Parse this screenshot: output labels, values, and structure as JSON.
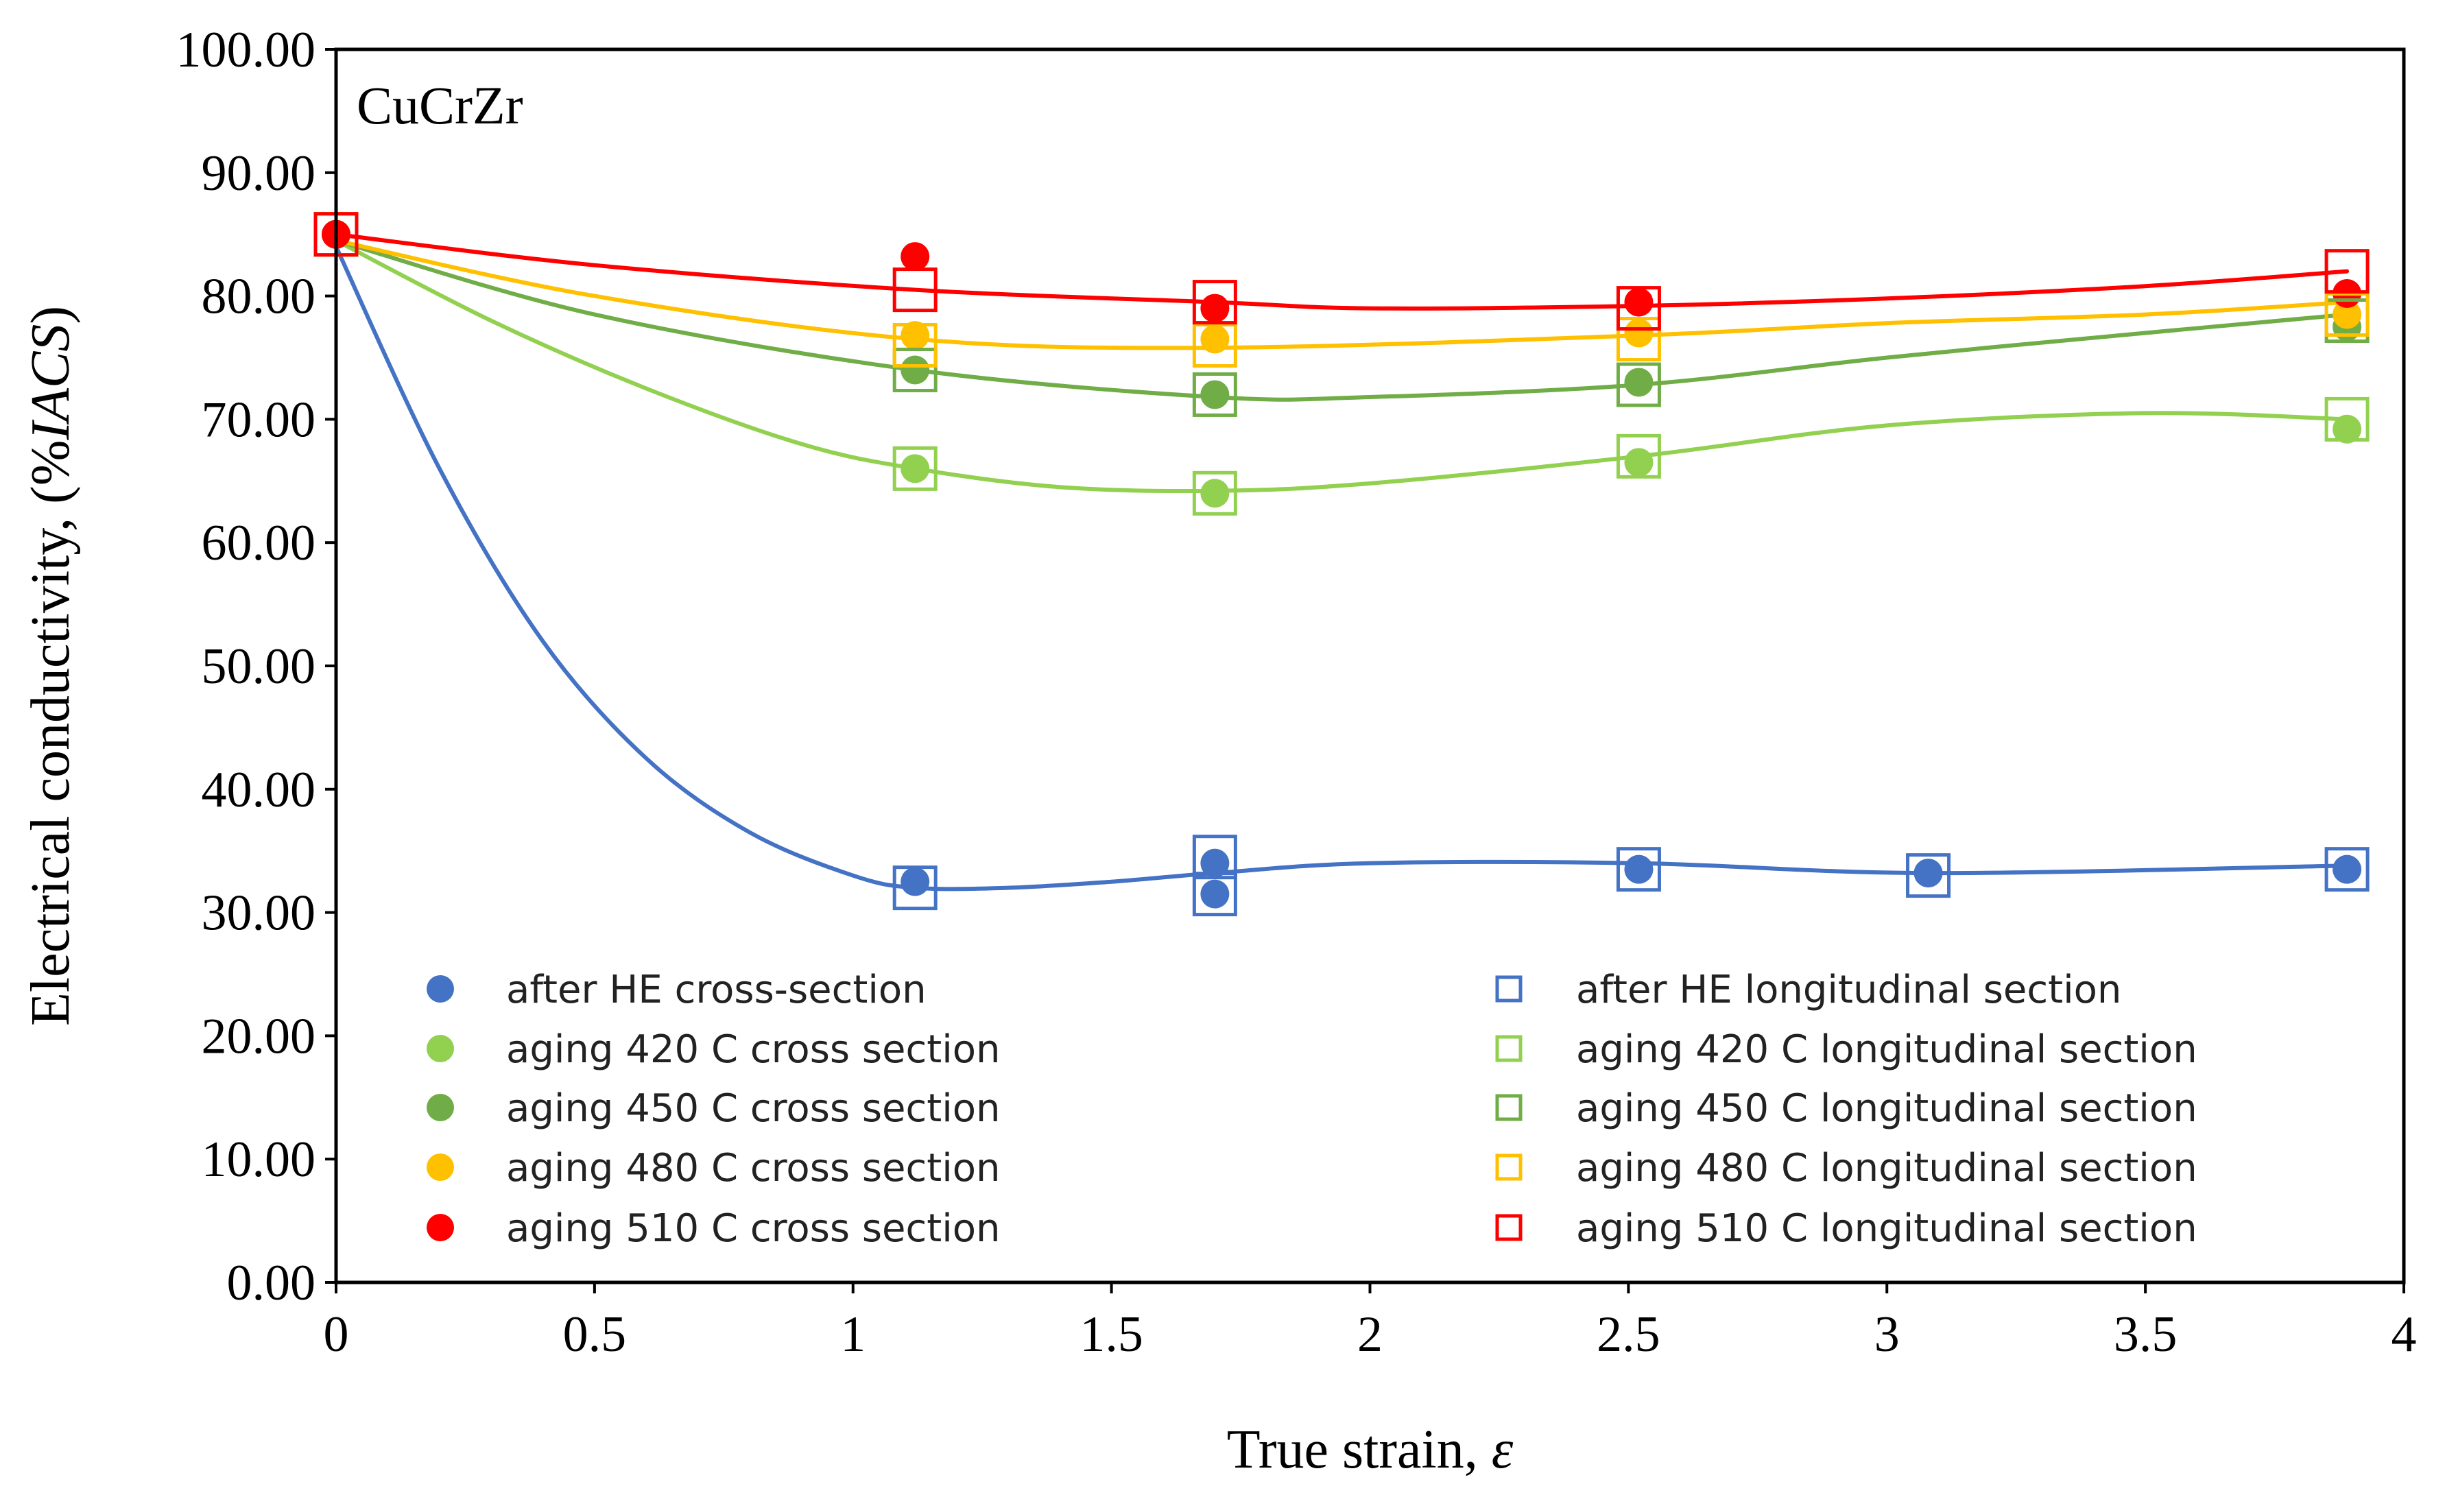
{
  "chart_data": {
    "type": "scatter",
    "annotation": "CuCrZr",
    "xlabel": "True strain, ",
    "xlabel_symbol": "ε",
    "ylabel": "Electrical conductivity, (%",
    "ylabel_italic": "IACS",
    "ylabel_suffix": ")",
    "xlim": [
      0,
      4
    ],
    "ylim": [
      0,
      100
    ],
    "x_ticks": [
      "0",
      "0.5",
      "1",
      "1.5",
      "2",
      "2.5",
      "3",
      "3.5",
      "4"
    ],
    "y_ticks": [
      "0.00",
      "10.00",
      "20.00",
      "30.00",
      "40.00",
      "50.00",
      "60.00",
      "70.00",
      "80.00",
      "90.00",
      "100.00"
    ],
    "grid": false,
    "legend_position": "bottom-inside",
    "colors": {
      "blue": "#4472c4",
      "light_green": "#92d050",
      "green": "#70ad47",
      "yellow": "#ffc000",
      "red": "#ff0000"
    },
    "series": [
      {
        "name": "after HE cross-section",
        "marker": "circle",
        "color": "#4472c4",
        "x": [
          0,
          1.12,
          1.7,
          1.7,
          2.52,
          3.08,
          3.89
        ],
        "y": [
          85.0,
          32.5,
          34.0,
          31.5,
          33.5,
          33.2,
          33.5
        ]
      },
      {
        "name": "aging 420 C cross section",
        "marker": "circle",
        "color": "#92d050",
        "x": [
          0,
          1.12,
          1.7,
          2.52,
          3.89
        ],
        "y": [
          85.0,
          66.0,
          64.0,
          66.5,
          69.2
        ]
      },
      {
        "name": "aging 450 C cross section",
        "marker": "circle",
        "color": "#70ad47",
        "x": [
          0,
          1.12,
          1.7,
          2.52,
          3.89
        ],
        "y": [
          85.0,
          74.0,
          72.0,
          73.0,
          77.5
        ]
      },
      {
        "name": "aging 480 C cross section",
        "marker": "circle",
        "color": "#ffc000",
        "x": [
          0,
          1.12,
          1.7,
          2.52,
          3.89
        ],
        "y": [
          85.0,
          76.8,
          76.5,
          77.0,
          78.5
        ]
      },
      {
        "name": "aging 510 C cross section",
        "marker": "circle",
        "color": "#ff0000",
        "x": [
          0,
          1.12,
          1.7,
          2.52,
          3.89
        ],
        "y": [
          85.0,
          83.2,
          79.0,
          79.5,
          80.2
        ]
      },
      {
        "name": "after HE longitudinal section",
        "marker": "square",
        "color": "#4472c4",
        "x": [
          0,
          1.12,
          1.7,
          1.7,
          2.52,
          3.08,
          3.89
        ],
        "y": [
          85.0,
          32.0,
          34.5,
          31.5,
          33.5,
          33.0,
          33.5
        ]
      },
      {
        "name": "aging 420 C longitudinal section",
        "marker": "square",
        "color": "#92d050",
        "x": [
          0,
          1.12,
          1.7,
          2.52,
          3.89
        ],
        "y": [
          85.0,
          66.0,
          64.0,
          67.0,
          70.0
        ]
      },
      {
        "name": "aging 450 C longitudinal section",
        "marker": "square",
        "color": "#70ad47",
        "x": [
          0,
          1.12,
          1.7,
          2.52,
          3.89
        ],
        "y": [
          85.0,
          74.0,
          72.0,
          72.8,
          78.0
        ]
      },
      {
        "name": "aging 480 C longitudinal section",
        "marker": "square",
        "color": "#ffc000",
        "x": [
          0,
          1.12,
          1.7,
          2.52,
          3.89
        ],
        "y": [
          85.0,
          76.0,
          76.0,
          76.5,
          78.5
        ]
      },
      {
        "name": "aging 510 C longitudinal section",
        "marker": "square",
        "color": "#ff0000",
        "x": [
          0,
          1.12,
          1.7,
          2.52,
          3.89
        ],
        "y": [
          85.0,
          80.5,
          79.5,
          79.0,
          82.0
        ]
      }
    ],
    "trend_lines": [
      {
        "name": "after HE trend",
        "color": "#4472c4",
        "x": [
          0,
          0.2,
          0.4,
          0.6,
          0.8,
          1.0,
          1.12,
          1.3,
          1.5,
          1.7,
          2.0,
          2.52,
          3.08,
          3.89
        ],
        "y": [
          84.0,
          66.0,
          52.0,
          42.5,
          36.5,
          33.0,
          32.0,
          32.0,
          32.5,
          33.2,
          34.0,
          34.0,
          33.2,
          33.8
        ]
      },
      {
        "name": "aging 420 C trend",
        "color": "#92d050",
        "x": [
          0,
          0.3,
          0.6,
          0.9,
          1.12,
          1.4,
          1.7,
          2.0,
          2.52,
          3.0,
          3.5,
          3.89
        ],
        "y": [
          84.5,
          78.0,
          72.5,
          68.0,
          66.0,
          64.5,
          64.2,
          64.8,
          67.0,
          69.5,
          70.5,
          70.0
        ]
      },
      {
        "name": "aging 450 C trend",
        "color": "#70ad47",
        "x": [
          0,
          0.5,
          1.12,
          1.7,
          2.0,
          2.52,
          3.0,
          3.5,
          3.89
        ],
        "y": [
          84.5,
          78.5,
          74.0,
          71.8,
          71.8,
          72.8,
          75.0,
          77.0,
          78.5
        ]
      },
      {
        "name": "aging 480 C trend",
        "color": "#ffc000",
        "x": [
          0,
          0.5,
          1.12,
          1.7,
          2.52,
          3.0,
          3.5,
          3.89
        ],
        "y": [
          84.5,
          80.0,
          76.5,
          75.8,
          76.8,
          77.8,
          78.5,
          79.5
        ]
      },
      {
        "name": "aging 510 C trend",
        "color": "#ff0000",
        "x": [
          0,
          0.5,
          1.12,
          1.7,
          2.0,
          2.52,
          3.0,
          3.5,
          3.89
        ],
        "y": [
          85.0,
          82.5,
          80.5,
          79.5,
          79.0,
          79.2,
          79.8,
          80.8,
          82.0
        ]
      }
    ]
  }
}
